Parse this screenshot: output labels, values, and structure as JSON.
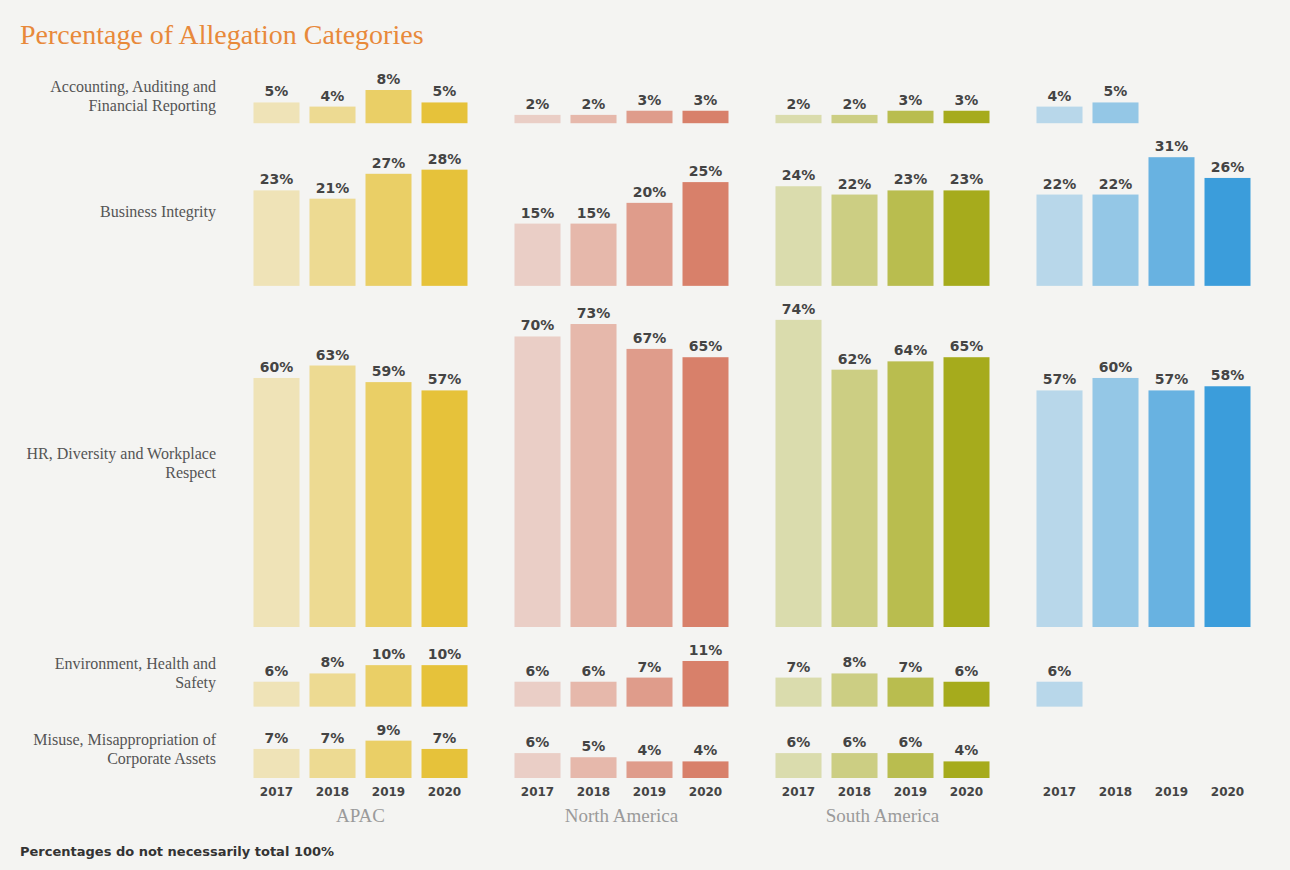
{
  "chart_data": {
    "type": "bar",
    "title": "Percentage of Allegation Categories",
    "note": "Percentages do not necessarily total 100%",
    "categories": [
      "2017",
      "2018",
      "2019",
      "2020"
    ],
    "rows": [
      "Accounting, Auditing and Financial Reporting",
      "Business Integrity",
      "HR, Diversity and Workplace Respect",
      "Environment, Health and Safety",
      "Misuse, Misappropriation of Corporate Assets"
    ],
    "data_labels": true,
    "tick_labels": "x",
    "panels": [
      {
        "name": "APAC",
        "color": "#e6c23a",
        "values": [
          [
            5,
            4,
            8,
            5
          ],
          [
            23,
            21,
            27,
            28
          ],
          [
            60,
            63,
            59,
            57
          ],
          [
            6,
            8,
            10,
            10
          ],
          [
            7,
            7,
            9,
            7
          ]
        ],
        "value_labels": [
          [
            "5%",
            "4%",
            "8%",
            "5%"
          ],
          [
            "23%",
            "21%",
            "27%",
            "28%"
          ],
          [
            "60%",
            "63%",
            "59%",
            "57%"
          ],
          [
            "6%",
            "8%",
            "10%",
            "10%"
          ],
          [
            "7%",
            "7%",
            "9%",
            "7%"
          ]
        ]
      },
      {
        "name": "North America",
        "color": "#d8806a",
        "values": [
          [
            2,
            2,
            3,
            3
          ],
          [
            15,
            15,
            20,
            25
          ],
          [
            70,
            73,
            67,
            65
          ],
          [
            6,
            6,
            7,
            11
          ],
          [
            6,
            5,
            4,
            4
          ]
        ],
        "value_labels": [
          [
            "2%",
            "2%",
            "3%",
            "3%"
          ],
          [
            "15%",
            "15%",
            "20%",
            "25%"
          ],
          [
            "70%",
            "73%",
            "67%",
            "65%"
          ],
          [
            "6%",
            "6%",
            "7%",
            "11%"
          ],
          [
            "6%",
            "5%",
            "4%",
            "4%"
          ]
        ]
      },
      {
        "name": "South America",
        "color": "#a6ab1c",
        "values": [
          [
            2,
            2,
            3,
            3
          ],
          [
            24,
            22,
            23,
            23
          ],
          [
            74,
            62,
            64,
            65
          ],
          [
            7,
            8,
            7,
            6
          ],
          [
            6,
            6,
            6,
            4
          ]
        ],
        "value_labels": [
          [
            "2%",
            "2%",
            "3%",
            "3%"
          ],
          [
            "24%",
            "22%",
            "23%",
            "23%"
          ],
          [
            "74%",
            "62%",
            "64%",
            "65%"
          ],
          [
            "7%",
            "8%",
            "7%",
            "6%"
          ],
          [
            "6%",
            "6%",
            "6%",
            "4%"
          ]
        ]
      },
      {
        "name": null,
        "color": "#3b9ddb",
        "values": [
          [
            4,
            5,
            null,
            null
          ],
          [
            22,
            22,
            31,
            26
          ],
          [
            57,
            60,
            57,
            58
          ],
          [
            6,
            null,
            null,
            null
          ],
          [
            null,
            null,
            null,
            null
          ]
        ],
        "value_labels": [
          [
            "4%",
            "5%",
            null,
            null
          ],
          [
            "22%",
            "22%",
            "31%",
            "26%"
          ],
          [
            "57%",
            "60%",
            "57%",
            "58%"
          ],
          [
            "6%",
            null,
            null,
            null
          ],
          [
            null,
            null,
            null,
            null
          ]
        ]
      }
    ]
  }
}
